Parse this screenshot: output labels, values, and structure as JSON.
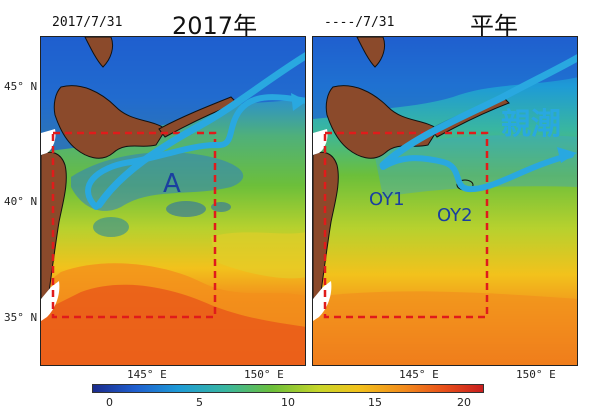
{
  "left_panel": {
    "date": "2017/7/31",
    "title": "2017年",
    "label_a": "A"
  },
  "right_panel": {
    "date": "----/7/31",
    "title": "平年",
    "label_oyashio": "親潮",
    "label_oy1": "OY1",
    "label_oy2": "OY2"
  },
  "lat_ticks": [
    "45° N",
    "40° N",
    "35° N"
  ],
  "lon_ticks_left": [
    "145° E",
    "150° E"
  ],
  "lon_ticks_right": [
    "145° E",
    "150° E"
  ],
  "colorbar": {
    "ticks": [
      "0",
      "5",
      "10",
      "15",
      "20"
    ],
    "colors": [
      "#1b2b8c",
      "#1f5fcf",
      "#1e9bd6",
      "#39b6a0",
      "#6cbf3a",
      "#c8d62a",
      "#f2c21c",
      "#f28a1c",
      "#e8501a",
      "#c81e1e"
    ]
  },
  "colors": {
    "current_arrow": "#29a8e0",
    "box_outline": "#e01b1b",
    "land": "#8b4a2b",
    "text_blue": "#1a3fa0"
  }
}
